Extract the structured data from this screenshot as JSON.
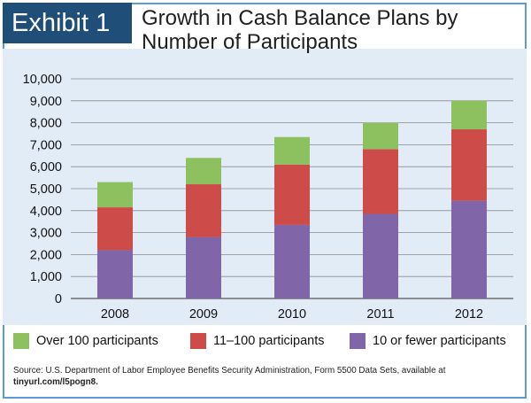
{
  "exhibit": "Exhibit 1",
  "title": "Growth in Cash Balance Plans by Number of Participants",
  "colors": {
    "header": "#1f4e79",
    "plot_background": "#e2ecf7",
    "border": "#5b9bd5",
    "over_100": "#8dc05f",
    "mid": "#cd4b48",
    "small": "#8065a9"
  },
  "chart_data": {
    "type": "bar",
    "stacked": true,
    "categories": [
      "2008",
      "2009",
      "2010",
      "2011",
      "2012"
    ],
    "series": [
      {
        "name": "10 or fewer participants",
        "color": "#8065a9",
        "values": [
          2200,
          2800,
          3350,
          3850,
          4450
        ]
      },
      {
        "name": "11–100 participants",
        "color": "#cd4b48",
        "values": [
          1950,
          2400,
          2750,
          2950,
          3250
        ]
      },
      {
        "name": "Over 100 participants",
        "color": "#8dc05f",
        "values": [
          1150,
          1200,
          1250,
          1200,
          1300
        ]
      }
    ],
    "ylim": [
      0,
      10000
    ],
    "yticks": [
      "0",
      "1,000",
      "2,000",
      "3,000",
      "4,000",
      "5,000",
      "6,000",
      "7,000",
      "8,000",
      "9,000",
      "10,000"
    ],
    "grid": true,
    "xlabel": "",
    "ylabel": "",
    "legend": [
      "Over 100 participants",
      "11–100 participants",
      "10 or fewer participants"
    ]
  },
  "source": {
    "text": "Source: U.S. Department of Labor Employee Benefits Security Administration, Form 5500 Data Sets, available at",
    "url": "tinyurl.com/l5pogn8."
  }
}
